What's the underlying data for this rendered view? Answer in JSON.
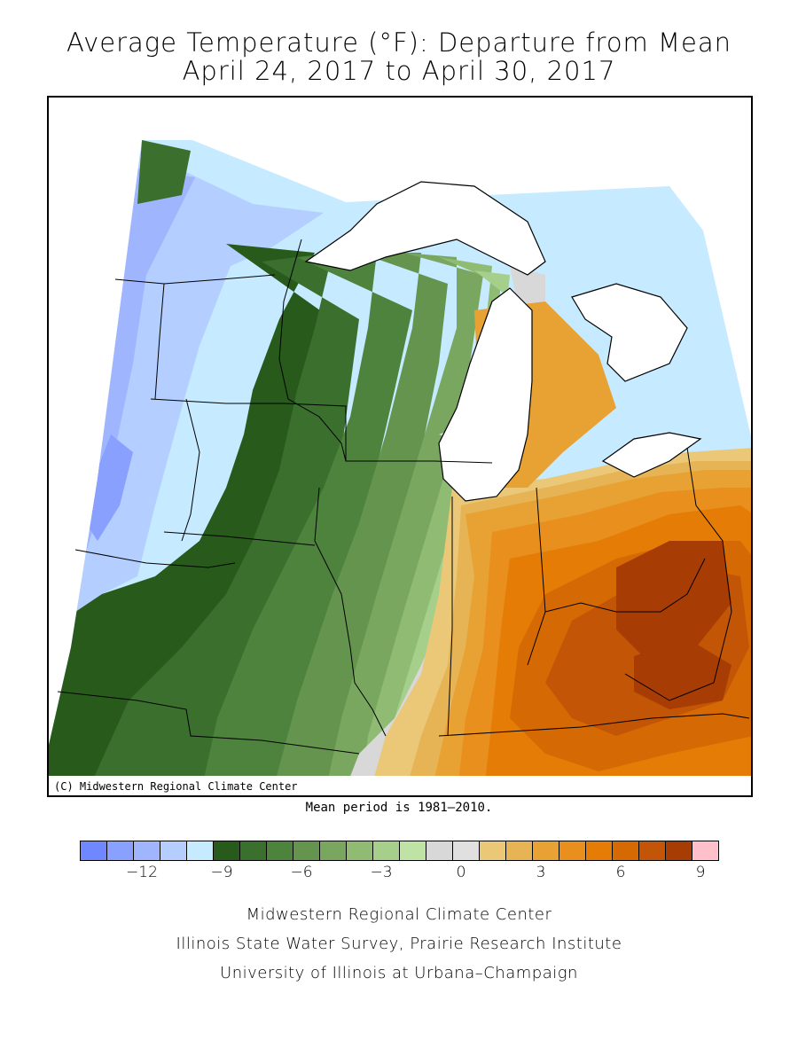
{
  "title_line1": "Average Temperature (°F): Departure from Mean",
  "title_line2": "April 24, 2017 to April 30, 2017",
  "copyright": "(C) Midwestern Regional Climate Center",
  "mean_period": "Mean period is 1981–2010.",
  "legend": {
    "colors": [
      "#7087ff",
      "#8aa0ff",
      "#9fb6ff",
      "#b4cfff",
      "#c6eaff",
      "#285a1c",
      "#3b6f2e",
      "#4e833d",
      "#64944e",
      "#79a760",
      "#8fbb73",
      "#a6cf8b",
      "#bfe3a5",
      "#d8d8d8",
      "#e0e0e0",
      "#ebc878",
      "#e6b455",
      "#e8a233",
      "#e98f1e",
      "#e57c06",
      "#d56a05",
      "#c25606",
      "#a83c05",
      "#ffc0cb"
    ],
    "ticks": [
      "−12",
      "−9",
      "−6",
      "−3",
      "0",
      "3",
      "6",
      "9"
    ]
  },
  "footer": {
    "line1": "Midwestern Regional Climate Center",
    "line2": "Illinois State Water Survey, Prairie Research Institute",
    "line3": "University of Illinois at Urbana–Champaign"
  }
}
